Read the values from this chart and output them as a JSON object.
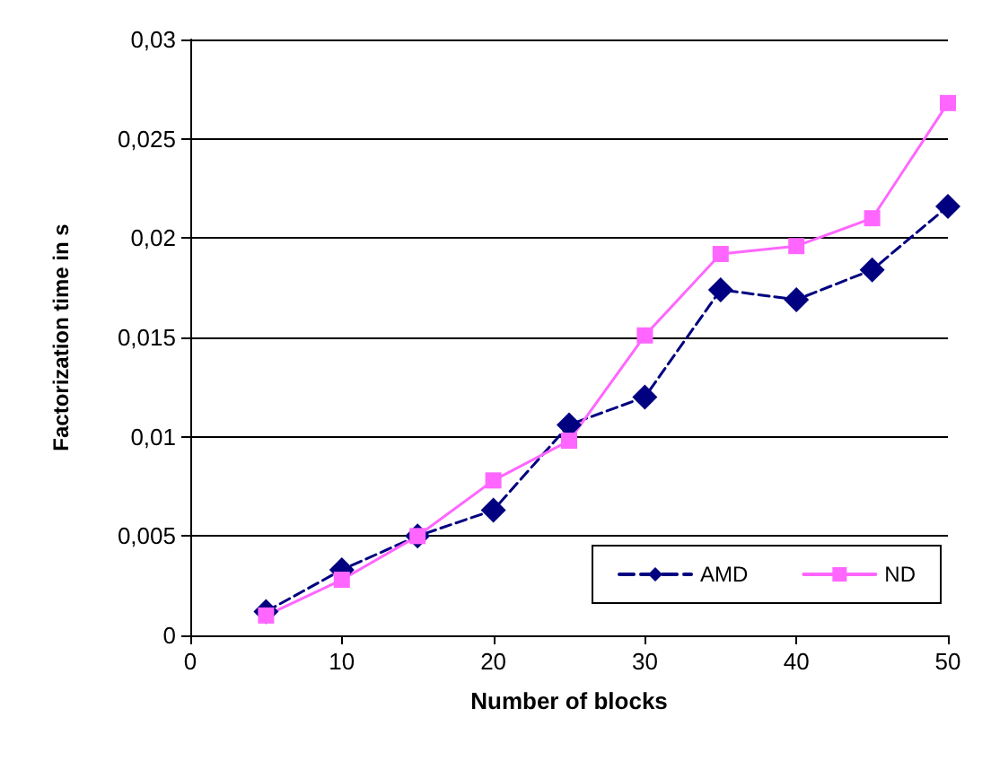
{
  "chart_data": {
    "type": "line",
    "xlabel": "Number of blocks",
    "ylabel": "Factorization time in s",
    "x": [
      5,
      10,
      15,
      20,
      25,
      30,
      35,
      40,
      45,
      50
    ],
    "series": [
      {
        "name": "AMD",
        "color": "#000080",
        "marker": "diamond",
        "line_style": "dashed",
        "values": [
          0.0012,
          0.0033,
          0.005,
          0.0063,
          0.0106,
          0.012,
          0.0174,
          0.0169,
          0.0184,
          0.0216
        ]
      },
      {
        "name": "ND",
        "color": "#ff66ff",
        "marker": "square",
        "line_style": "solid",
        "values": [
          0.001,
          0.0028,
          0.005,
          0.0078,
          0.0098,
          0.0151,
          0.0192,
          0.0196,
          0.021,
          0.0268
        ]
      }
    ],
    "xlim": [
      0,
      50
    ],
    "xticks": [
      0,
      10,
      20,
      30,
      40,
      50
    ],
    "ylim": [
      0,
      0.03
    ],
    "yticks": [
      0,
      {
        "value": 0.005,
        "label": "0,005"
      },
      {
        "value": 0.01,
        "label": "0,01"
      },
      {
        "value": 0.015,
        "label": "0,015"
      },
      {
        "value": 0.02,
        "label": "0,02"
      },
      {
        "value": 0.025,
        "label": "0,025"
      },
      {
        "value": 0.03,
        "label": "0,03"
      }
    ],
    "grid": "y",
    "legend": "bottom right"
  }
}
